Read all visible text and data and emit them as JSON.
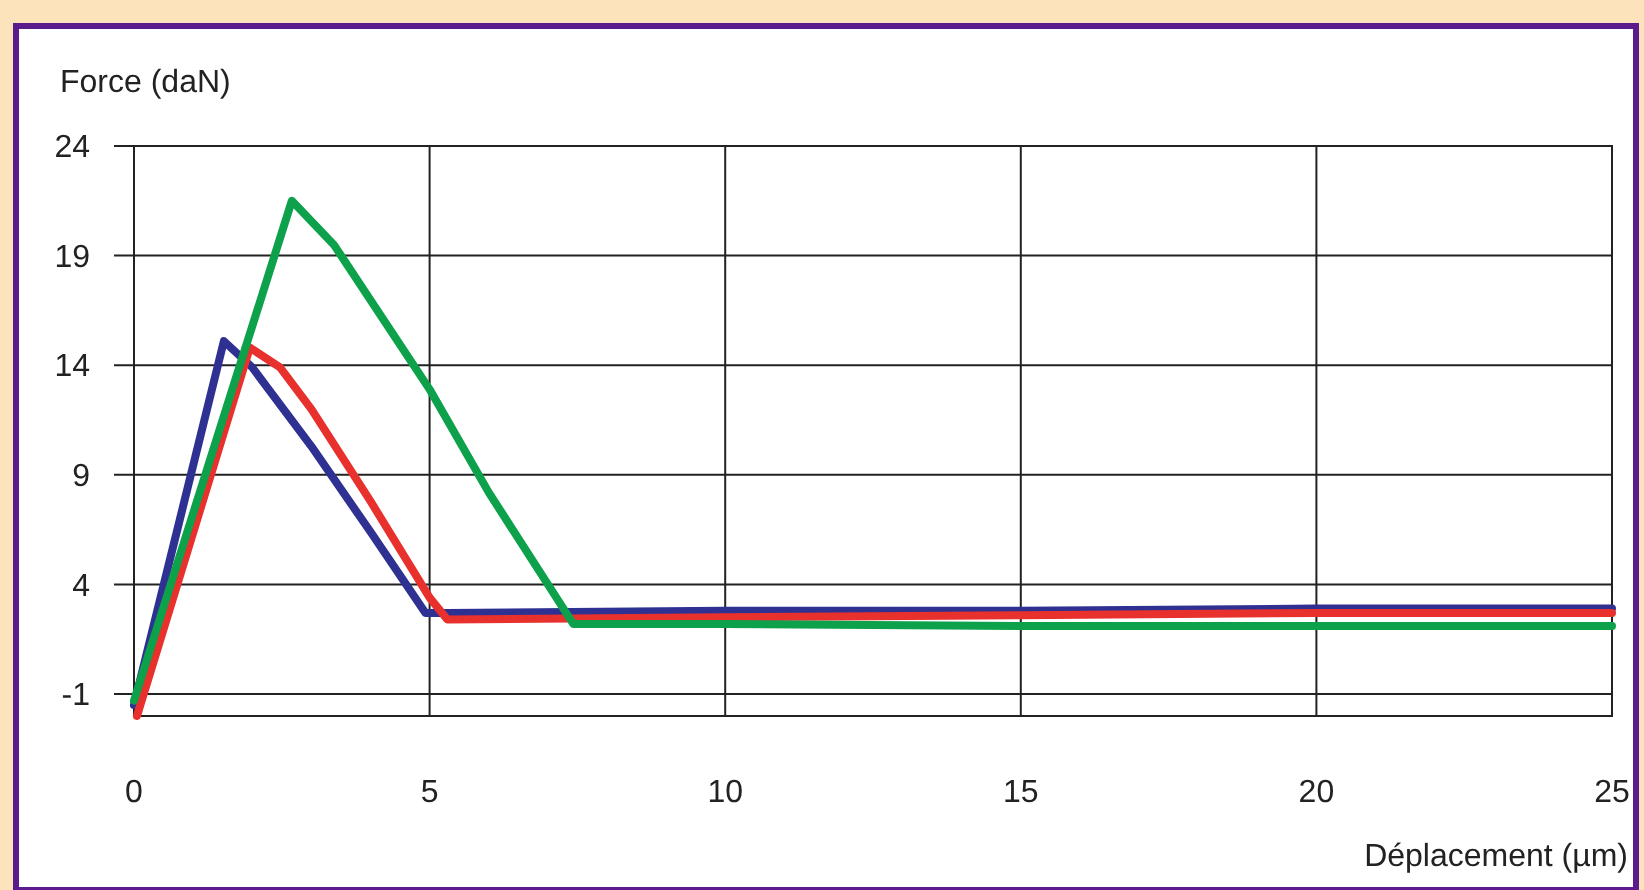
{
  "chart_data": {
    "type": "line",
    "xlabel": "Déplacement (µm)",
    "ylabel": "Force (daN)",
    "xlim": [
      0,
      25
    ],
    "xticks": [
      0,
      5,
      10,
      15,
      20,
      25
    ],
    "ylim": [
      -2,
      24
    ],
    "yticks": [
      -1,
      4,
      9,
      14,
      19,
      24
    ],
    "grid": true,
    "line_style": "solid",
    "marker": "none",
    "series": [
      {
        "color": "#2e3192",
        "x": [
          0,
          1.52,
          2.0,
          3.0,
          4.0,
          4.93,
          5.3,
          10,
          15,
          20,
          25
        ],
        "values": [
          -1.5,
          15.1,
          13.9,
          10.3,
          6.4,
          2.7,
          2.7,
          2.8,
          2.8,
          2.9,
          2.9
        ]
      },
      {
        "color": "#e8302d",
        "x": [
          0.05,
          1.96,
          2.47,
          3.0,
          4.0,
          5.0,
          5.3,
          10,
          15,
          20,
          25
        ],
        "values": [
          -2.0,
          14.8,
          13.9,
          12.0,
          7.8,
          3.4,
          2.4,
          2.5,
          2.6,
          2.7,
          2.7
        ]
      },
      {
        "color": "#0ca14a",
        "x": [
          0,
          2.67,
          3.38,
          5,
          6,
          7.43,
          10,
          15,
          20,
          25
        ],
        "values": [
          -1.3,
          21.5,
          19.5,
          12.9,
          8.2,
          2.2,
          2.2,
          2.1,
          2.1,
          2.1
        ]
      }
    ]
  }
}
